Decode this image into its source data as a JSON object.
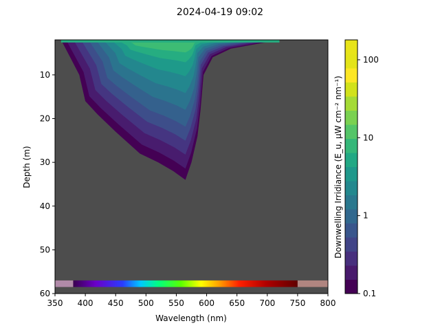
{
  "chart_data": {
    "type": "heatmap",
    "title": "2024-04-19 09:02",
    "xlabel": "Wavelength (nm)",
    "ylabel": "Depth (m)",
    "xlim": [
      350,
      800
    ],
    "ylim": [
      60,
      2
    ],
    "y_inverted": true,
    "xticks": [
      350,
      400,
      450,
      500,
      550,
      600,
      650,
      700,
      750,
      800
    ],
    "yticks": [
      10,
      20,
      30,
      40,
      50,
      60
    ],
    "background_color": "#4d4d4d",
    "colorbar": {
      "label": "Downwelling Irridiance (E_u, μW cm⁻² nm⁻¹)",
      "scale": "log",
      "range": [
        0.1,
        180
      ],
      "ticks": [
        0.1,
        1,
        10,
        100
      ],
      "tick_labels": [
        "0.1",
        "1",
        "10",
        "100"
      ],
      "levels": 18
    },
    "contour_extents": [
      {
        "level": 0.1,
        "shallow_m": 2,
        "deep_m": 34,
        "deep_wavelength_nm": 565,
        "left_edge": [
          [
            360,
            2
          ],
          [
            375,
            6
          ],
          [
            390,
            10
          ],
          [
            400,
            16
          ],
          [
            420,
            19
          ],
          [
            450,
            23
          ],
          [
            490,
            28
          ],
          [
            520,
            30
          ],
          [
            545,
            32
          ],
          [
            565,
            34
          ]
        ],
        "right_edge": [
          [
            565,
            34
          ],
          [
            575,
            30
          ],
          [
            585,
            24
          ],
          [
            590,
            18
          ],
          [
            595,
            10
          ],
          [
            610,
            6
          ],
          [
            640,
            4
          ],
          [
            680,
            3
          ],
          [
            720,
            2
          ]
        ]
      },
      {
        "level": 0.3,
        "shallow_m": 2,
        "deep_m": 31,
        "deep_wavelength_nm": 565
      },
      {
        "level": 1,
        "shallow_m": 2,
        "deep_m": 25,
        "deep_wavelength_nm": 570
      },
      {
        "level": 3,
        "shallow_m": 2,
        "deep_m": 18,
        "deep_wavelength_nm": 575
      },
      {
        "level": 10,
        "shallow_m": 2,
        "deep_m": 9,
        "deep_wavelength_nm": 580
      },
      {
        "level": 20,
        "shallow_m": 2,
        "deep_m": 5,
        "deep_wavelength_nm": 560
      }
    ],
    "spectrum_bar": {
      "depth_range_m": [
        57,
        58.5
      ],
      "uv_range_nm": [
        350,
        380
      ],
      "visible_range_nm": [
        380,
        750
      ],
      "ir_range_nm": [
        750,
        800
      ],
      "uv_color": "#b08aa8",
      "ir_color": "#b08580"
    }
  }
}
